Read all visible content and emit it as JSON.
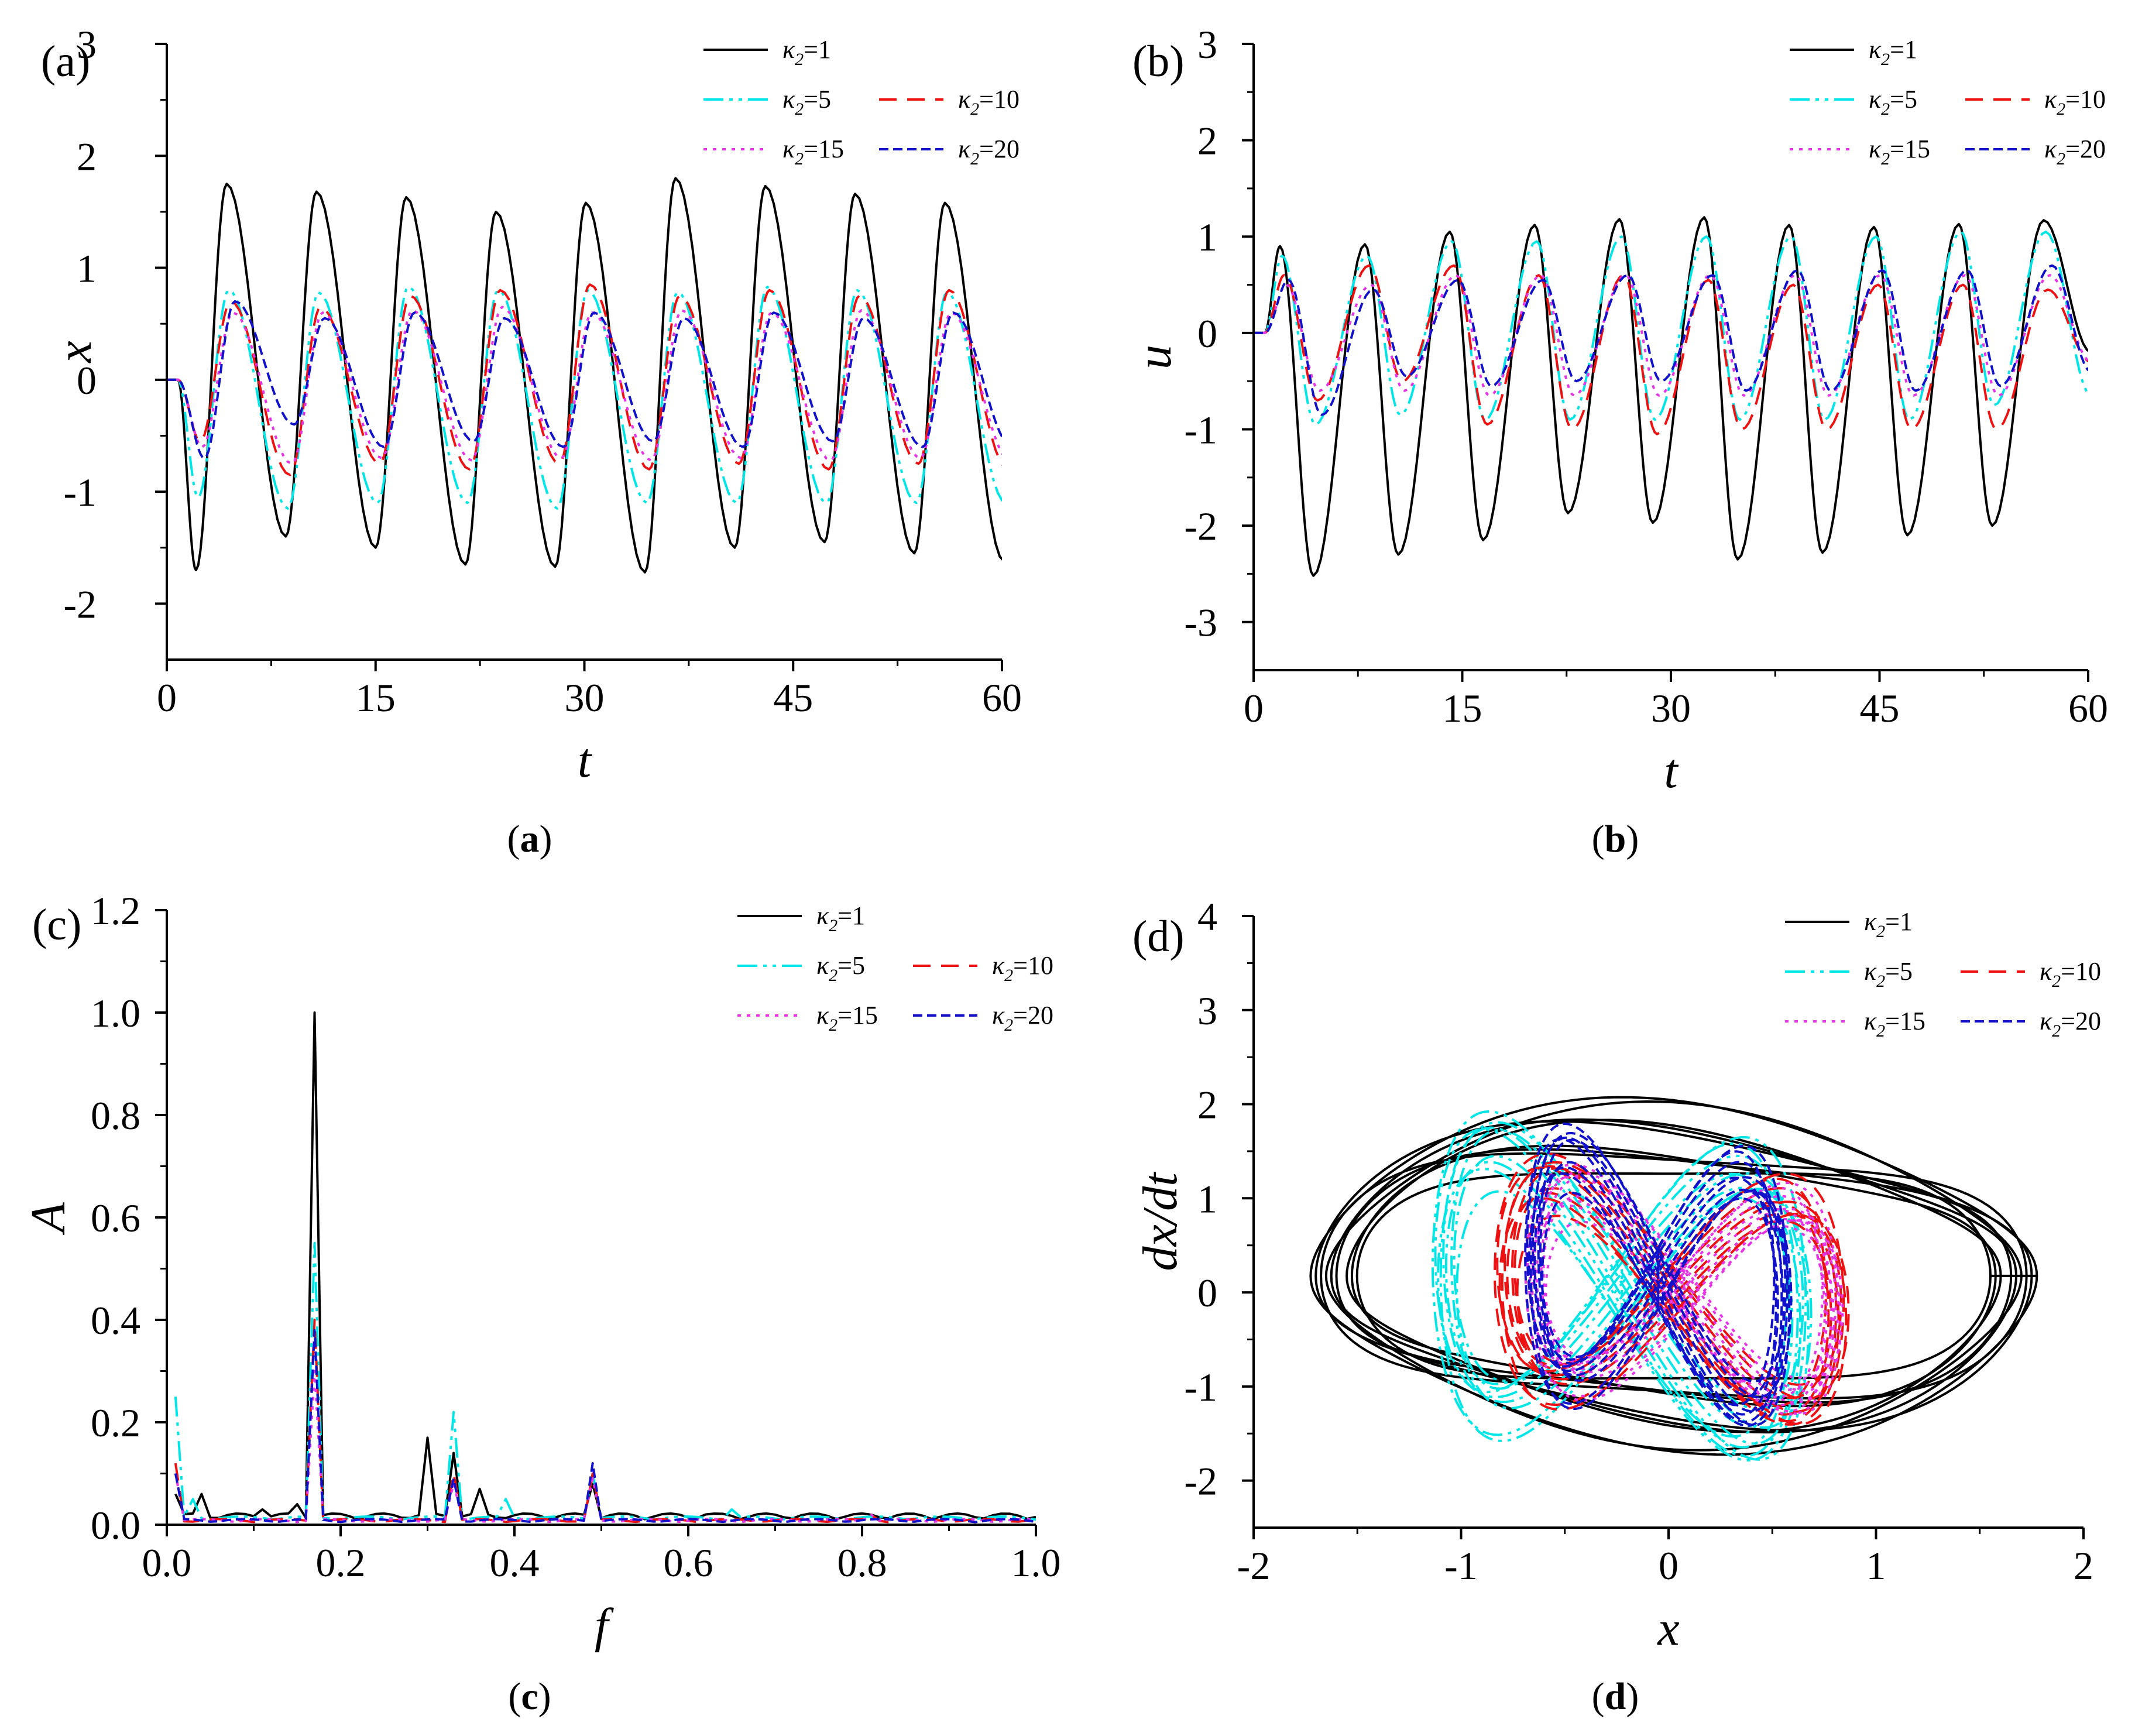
{
  "figure": {
    "caption_labels": [
      "(a)",
      "(b)",
      "(c)",
      "(d)"
    ],
    "caption_bold_letters": [
      "a",
      "b",
      "c",
      "d"
    ]
  },
  "colors": {
    "k1": "#000000",
    "k5": "#00e5e5",
    "k10": "#ee1111",
    "k15": "#e633e6",
    "k20": "#1111cc"
  },
  "chart_data": [
    {
      "id": "a",
      "type": "line",
      "panel_label": "(a)",
      "title": "",
      "xlabel": "t",
      "ylabel": "x",
      "xlim": [
        0,
        60
      ],
      "ylim": [
        -2.5,
        3
      ],
      "xticks": [
        0,
        15,
        30,
        45,
        60
      ],
      "yticks": [
        -2,
        -1,
        0,
        1,
        2,
        3
      ],
      "legend_position": "top-right",
      "series": [
        {
          "name": "κ2=1",
          "label_sub": "2",
          "label_val": "=1",
          "peaks": [
            1.75,
            1.68,
            1.63,
            1.5,
            1.58,
            1.8,
            1.73,
            1.66,
            1.58
          ],
          "troughs": [
            -1.7,
            -1.4,
            -1.5,
            -1.65,
            -1.67,
            -1.72,
            -1.5,
            -1.45,
            -1.55,
            -1.62
          ]
        },
        {
          "name": "κ2=5",
          "label_sub": "2",
          "label_val": "=5",
          "peaks": [
            0.8,
            0.78,
            0.83,
            0.8,
            0.8,
            0.78,
            0.83,
            0.8,
            0.78
          ],
          "troughs": [
            -1.05,
            -1.15,
            -1.1,
            -1.1,
            -1.15,
            -1.1,
            -1.1,
            -1.1,
            -1.1,
            -1.1
          ]
        },
        {
          "name": "κ2=10",
          "label_sub": "2",
          "label_val": "=10",
          "peaks": [
            0.7,
            0.65,
            0.75,
            0.8,
            0.85,
            0.75,
            0.8,
            0.75,
            0.8
          ],
          "troughs": [
            -0.55,
            -0.85,
            -0.75,
            -0.8,
            -0.75,
            -0.8,
            -0.75,
            -0.8,
            -0.75,
            -0.8
          ]
        },
        {
          "name": "κ2=15",
          "label_sub": "2",
          "label_val": "=15",
          "peaks": [
            0.6,
            0.6,
            0.62,
            0.65,
            0.6,
            0.62,
            0.6,
            0.62,
            0.6
          ],
          "troughs": [
            -0.6,
            -0.75,
            -0.7,
            -0.72,
            -0.7,
            -0.72,
            -0.7,
            -0.72,
            -0.7,
            -0.72
          ]
        },
        {
          "name": "κ2=20",
          "label_sub": "2",
          "label_val": "=20",
          "peaks": [
            0.7,
            0.55,
            0.6,
            0.55,
            0.6,
            0.55,
            0.6,
            0.55,
            0.6
          ],
          "troughs": [
            -0.7,
            -0.4,
            -0.6,
            -0.55,
            -0.6,
            -0.55,
            -0.6,
            -0.55,
            -0.6,
            -0.6
          ]
        }
      ]
    },
    {
      "id": "b",
      "type": "line",
      "panel_label": "(b)",
      "title": "",
      "xlabel": "t",
      "ylabel": "u",
      "xlim": [
        0,
        60
      ],
      "ylim": [
        -3.5,
        3
      ],
      "xticks": [
        0,
        15,
        30,
        45,
        60
      ],
      "yticks": [
        -3,
        -2,
        -1,
        0,
        1,
        2,
        3
      ],
      "legend_position": "top-right",
      "series": [
        {
          "name": "κ2=1",
          "label_sub": "2",
          "label_val": "=1",
          "peaks": [
            0.9,
            0.92,
            1.05,
            1.12,
            1.18,
            1.2,
            1.12,
            1.1,
            1.13,
            1.17
          ],
          "troughs": [
            -2.52,
            -2.3,
            -2.15,
            -1.87,
            -1.97,
            -2.35,
            -2.28,
            -2.1,
            -2.0
          ]
        },
        {
          "name": "κ2=5",
          "label_sub": "2",
          "label_val": "=5",
          "peaks": [
            0.8,
            0.8,
            0.95,
            0.95,
            1.0,
            1.0,
            1.0,
            1.0,
            1.05,
            1.05
          ],
          "troughs": [
            -0.95,
            -0.85,
            -0.9,
            -0.9,
            -0.9,
            -0.9,
            -0.9,
            -0.9,
            -0.75
          ]
        },
        {
          "name": "κ2=10",
          "label_sub": "2",
          "label_val": "=10",
          "peaks": [
            0.6,
            0.7,
            0.7,
            0.6,
            0.6,
            0.55,
            0.5,
            0.5,
            0.5,
            0.45
          ],
          "troughs": [
            -0.7,
            -0.5,
            -0.95,
            -1.0,
            -1.05,
            -1.0,
            -1.0,
            -1.0,
            -1.0
          ]
        },
        {
          "name": "κ2=15",
          "label_sub": "2",
          "label_val": "=15",
          "peaks": [
            0.5,
            0.5,
            0.6,
            0.6,
            0.6,
            0.6,
            0.6,
            0.6,
            0.6,
            0.6
          ],
          "troughs": [
            -0.6,
            -0.6,
            -0.65,
            -0.65,
            -0.65,
            -0.65,
            -0.65,
            -0.65,
            -0.65
          ]
        },
        {
          "name": "κ2=20",
          "label_sub": "2",
          "label_val": "=20",
          "peaks": [
            0.55,
            0.45,
            0.55,
            0.55,
            0.6,
            0.6,
            0.65,
            0.65,
            0.65,
            0.7
          ],
          "troughs": [
            -0.85,
            -0.45,
            -0.55,
            -0.5,
            -0.5,
            -0.6,
            -0.6,
            -0.6,
            -0.55
          ]
        }
      ]
    },
    {
      "id": "c",
      "type": "line",
      "panel_label": "(c)",
      "title": "",
      "xlabel": "f",
      "ylabel": "A",
      "xlim": [
        0,
        1
      ],
      "ylim": [
        0,
        1.2
      ],
      "xticks": [
        0.0,
        0.2,
        0.4,
        0.6,
        0.8,
        1.0
      ],
      "yticks": [
        0.0,
        0.2,
        0.4,
        0.6,
        0.8,
        1.0,
        1.2
      ],
      "legend_position": "top-right",
      "series": [
        {
          "name": "κ2=1",
          "label_sub": "2",
          "label_val": "=1",
          "baseline": 0.01,
          "peaks": [
            [
              0.01,
              0.06
            ],
            [
              0.04,
              0.06
            ],
            [
              0.11,
              0.03
            ],
            [
              0.15,
              0.04
            ],
            [
              0.17,
              1.0
            ],
            [
              0.3,
              0.17
            ],
            [
              0.33,
              0.14
            ],
            [
              0.36,
              0.07
            ],
            [
              0.49,
              0.08
            ],
            [
              0.62,
              0.02
            ]
          ]
        },
        {
          "name": "κ2=5",
          "label_sub": "2",
          "label_val": "=5",
          "baseline": 0.01,
          "peaks": [
            [
              0.01,
              0.25
            ],
            [
              0.03,
              0.05
            ],
            [
              0.17,
              0.55
            ],
            [
              0.33,
              0.22
            ],
            [
              0.39,
              0.05
            ],
            [
              0.49,
              0.1
            ],
            [
              0.65,
              0.03
            ]
          ]
        },
        {
          "name": "κ2=10",
          "label_sub": "2",
          "label_val": "=10",
          "baseline": 0.005,
          "peaks": [
            [
              0.01,
              0.12
            ],
            [
              0.17,
              0.4
            ],
            [
              0.33,
              0.1
            ],
            [
              0.49,
              0.1
            ],
            [
              0.81,
              0.02
            ]
          ]
        },
        {
          "name": "κ2=15",
          "label_sub": "2",
          "label_val": "=15",
          "baseline": 0.005,
          "peaks": [
            [
              0.01,
              0.1
            ],
            [
              0.17,
              0.3
            ],
            [
              0.33,
              0.08
            ],
            [
              0.49,
              0.09
            ],
            [
              0.81,
              0.02
            ]
          ]
        },
        {
          "name": "κ2=20",
          "label_sub": "2",
          "label_val": "=20",
          "baseline": 0.005,
          "peaks": [
            [
              0.01,
              0.1
            ],
            [
              0.17,
              0.38
            ],
            [
              0.33,
              0.09
            ],
            [
              0.49,
              0.12
            ]
          ]
        }
      ]
    },
    {
      "id": "d",
      "type": "line",
      "panel_label": "(d)",
      "title": "",
      "xlabel": "x",
      "ylabel": "dx/dt",
      "xlim": [
        -2,
        2
      ],
      "ylim": [
        -2.5,
        4
      ],
      "xticks": [
        -2,
        -1,
        0,
        1,
        2
      ],
      "yticks": [
        -2,
        -1,
        0,
        1,
        2,
        3,
        4
      ],
      "legend_position": "top-right",
      "series": [
        {
          "name": "κ2=1",
          "label_sub": "2",
          "label_val": "=1",
          "x_range": [
            -1.75,
            1.8
          ],
          "dxdt_range": [
            -1.8,
            2.15
          ]
        },
        {
          "name": "κ2=5",
          "label_sub": "2",
          "label_val": "=5",
          "x_range": [
            -1.15,
            0.7
          ],
          "dxdt_range": [
            -1.65,
            1.7
          ]
        },
        {
          "name": "κ2=10",
          "label_sub": "2",
          "label_val": "=10",
          "x_range": [
            -0.85,
            0.88
          ],
          "dxdt_range": [
            -1.3,
            1.3
          ]
        },
        {
          "name": "κ2=15",
          "label_sub": "2",
          "label_val": "=15",
          "x_range": [
            -0.7,
            0.85
          ],
          "dxdt_range": [
            -1.2,
            1.2
          ]
        },
        {
          "name": "κ2=20",
          "label_sub": "2",
          "label_val": "=20",
          "x_range": [
            -0.7,
            0.6
          ],
          "dxdt_range": [
            -1.3,
            1.6
          ]
        }
      ]
    }
  ]
}
